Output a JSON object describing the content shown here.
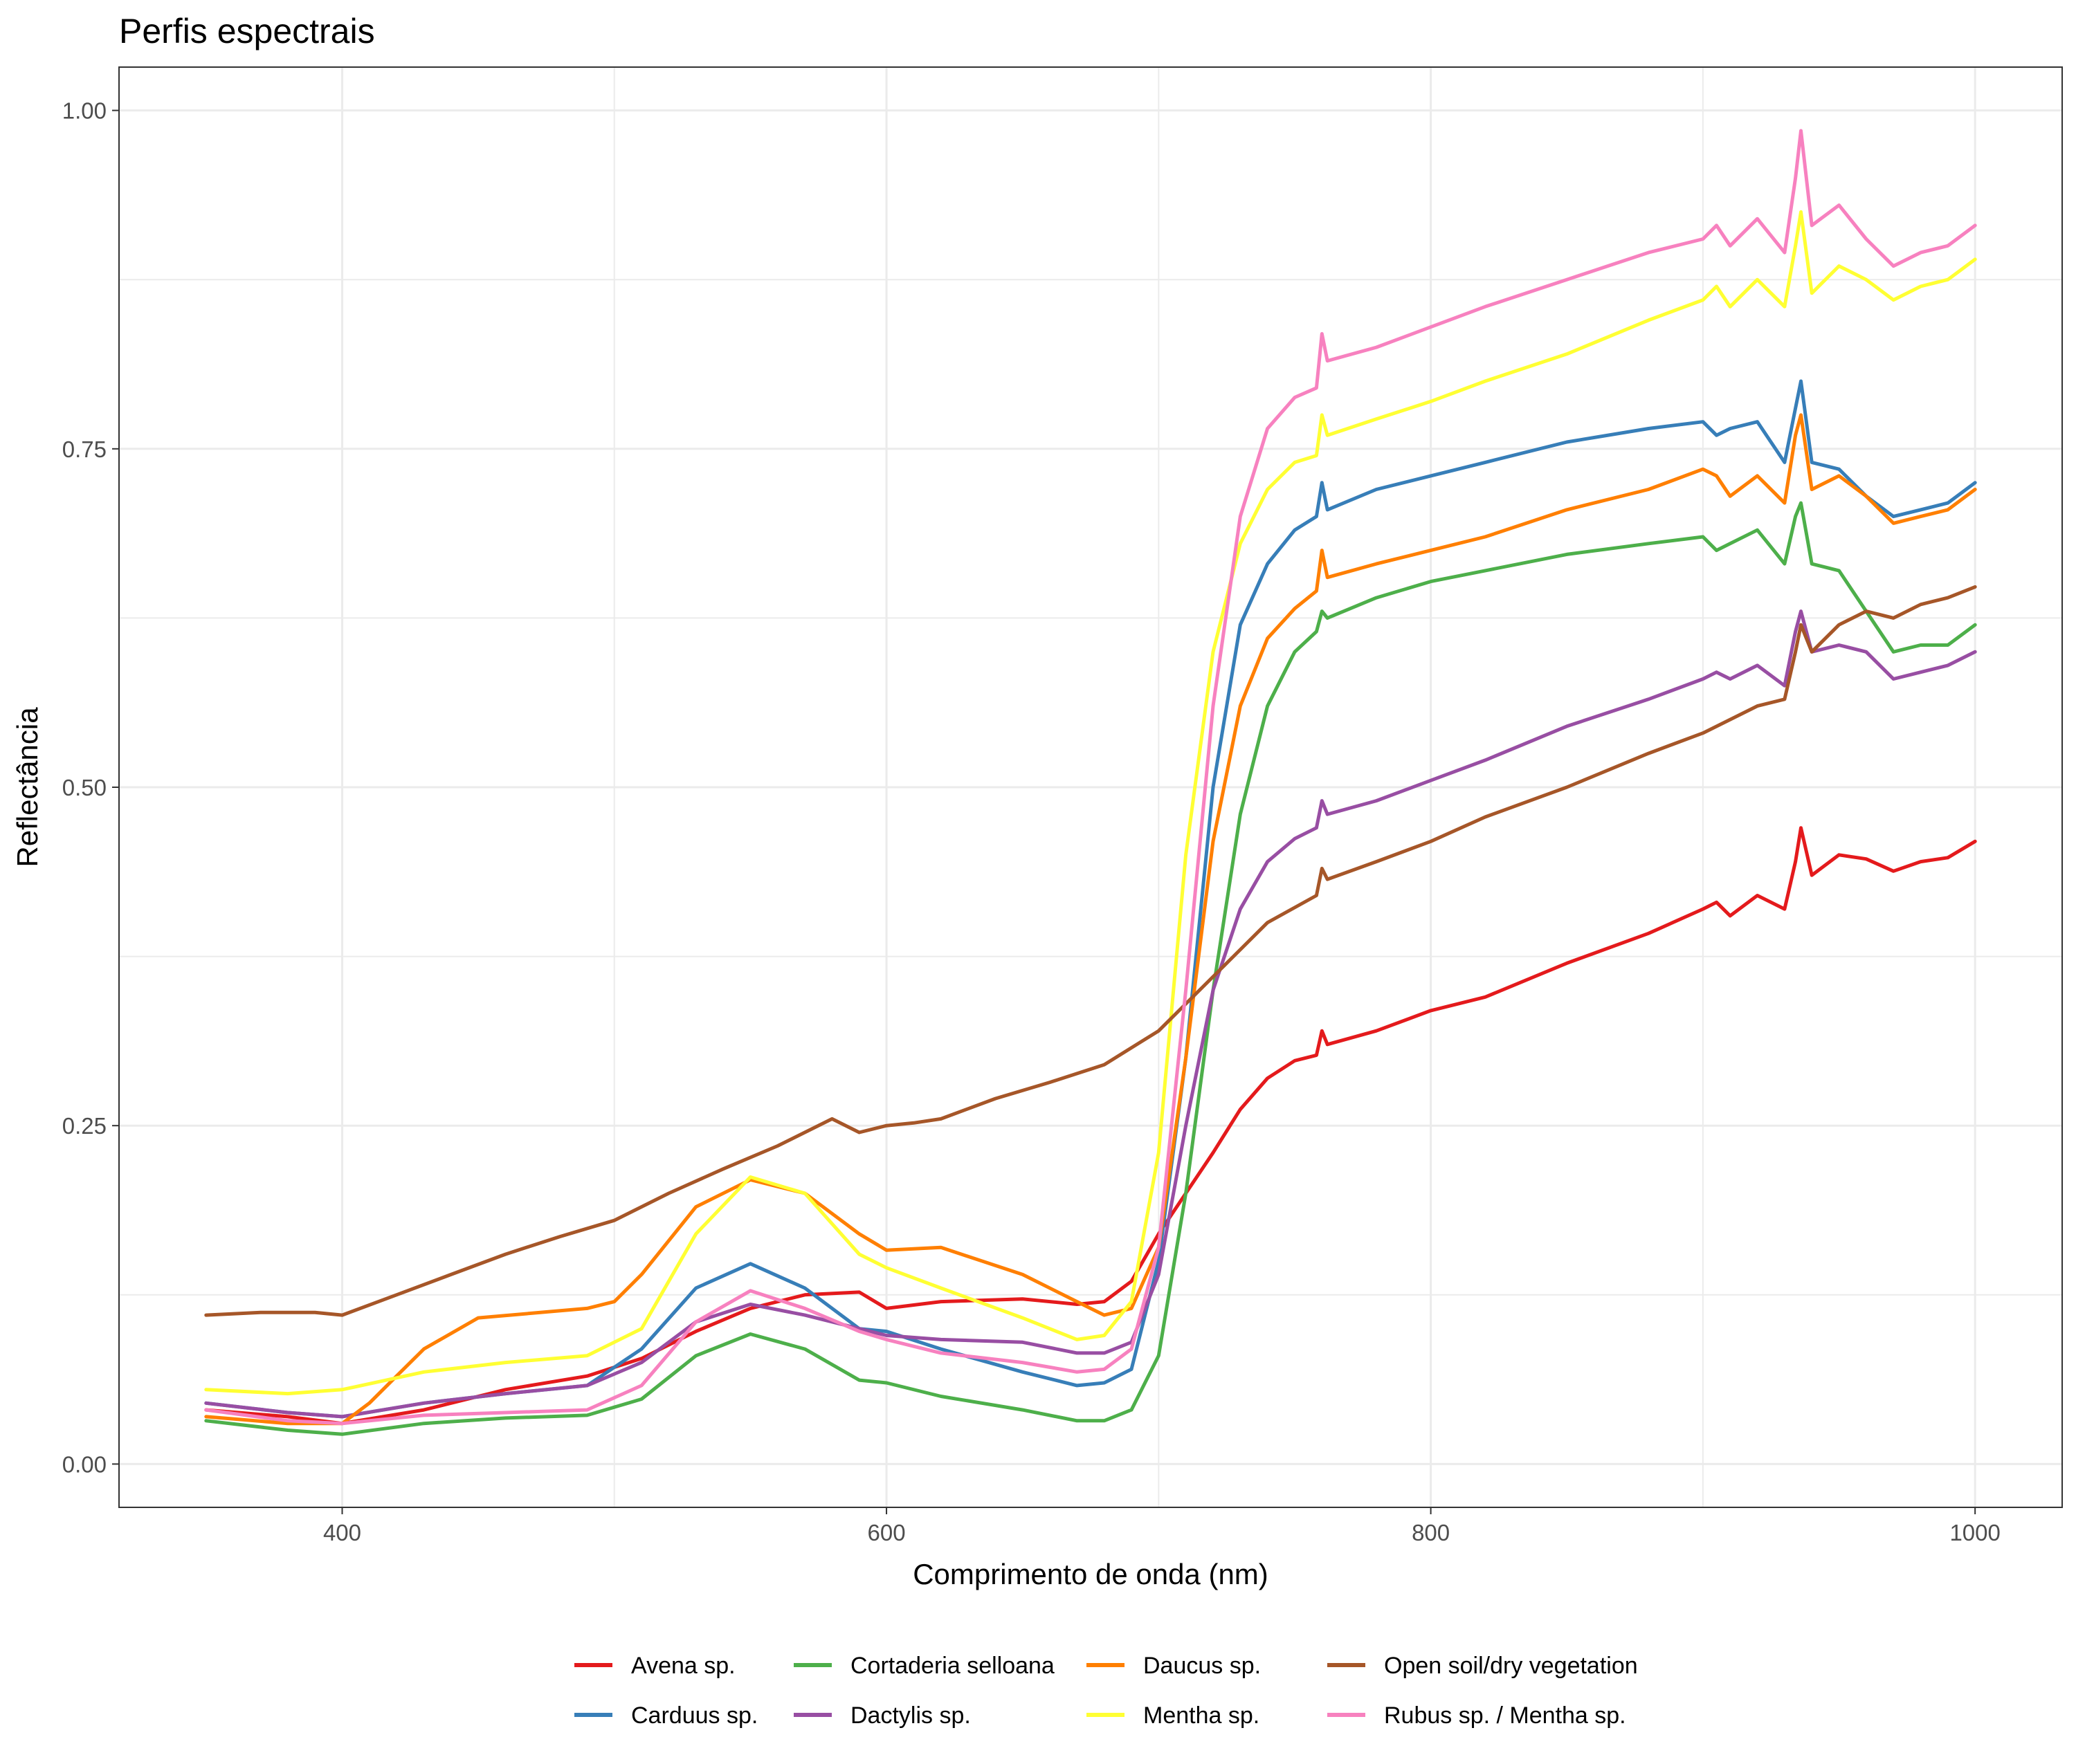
{
  "chart_data": {
    "type": "line",
    "title": "Perfis espectrais",
    "xlabel": "Comprimento de onda (nm)",
    "ylabel": "Reflectância",
    "xlim": [
      318,
      1032
    ],
    "ylim": [
      -0.032,
      1.032
    ],
    "x_ticks": [
      400,
      600,
      800,
      1000
    ],
    "x_tick_labels": [
      "400",
      "600",
      "800",
      "1000"
    ],
    "y_ticks": [
      0,
      0.25,
      0.5,
      0.75,
      1.0
    ],
    "y_tick_labels": [
      "0.00",
      "0.25",
      "0.50",
      "0.75",
      "1.00"
    ],
    "y_minor_ticks": [
      0.125,
      0.375,
      0.625,
      0.875
    ],
    "x_minor_ticks": [
      500,
      700,
      900
    ],
    "grid": true,
    "legend_position": "bottom",
    "series": [
      {
        "name": "Avena sp.",
        "color": "#e41a1c",
        "x": [
          350,
          380,
          400,
          430,
          460,
          490,
          510,
          530,
          550,
          570,
          590,
          600,
          620,
          650,
          670,
          680,
          690,
          700,
          710,
          720,
          730,
          740,
          750,
          758,
          760,
          762,
          780,
          800,
          820,
          850,
          880,
          900,
          905,
          910,
          920,
          930,
          934,
          936,
          940,
          950,
          960,
          970,
          980,
          990,
          1000
        ],
        "y": [
          0.04,
          0.035,
          0.03,
          0.04,
          0.055,
          0.065,
          0.078,
          0.098,
          0.115,
          0.125,
          0.127,
          0.115,
          0.12,
          0.122,
          0.118,
          0.12,
          0.135,
          0.17,
          0.2,
          0.23,
          0.262,
          0.285,
          0.298,
          0.302,
          0.32,
          0.31,
          0.32,
          0.335,
          0.345,
          0.37,
          0.392,
          0.41,
          0.415,
          0.405,
          0.42,
          0.41,
          0.445,
          0.47,
          0.435,
          0.45,
          0.447,
          0.438,
          0.445,
          0.448,
          0.46
        ]
      },
      {
        "name": "Carduus sp.",
        "color": "#377eb8",
        "x": [
          350,
          380,
          400,
          430,
          460,
          490,
          510,
          530,
          550,
          570,
          590,
          600,
          620,
          650,
          670,
          680,
          690,
          700,
          710,
          720,
          730,
          740,
          750,
          758,
          760,
          762,
          780,
          800,
          820,
          850,
          880,
          900,
          905,
          910,
          920,
          930,
          934,
          936,
          940,
          950,
          960,
          970,
          980,
          990,
          1000
        ],
        "y": [
          0.045,
          0.038,
          0.035,
          0.045,
          0.052,
          0.058,
          0.085,
          0.13,
          0.148,
          0.13,
          0.1,
          0.098,
          0.085,
          0.068,
          0.058,
          0.06,
          0.07,
          0.15,
          0.3,
          0.5,
          0.62,
          0.665,
          0.69,
          0.7,
          0.725,
          0.705,
          0.72,
          0.73,
          0.74,
          0.755,
          0.765,
          0.77,
          0.76,
          0.765,
          0.77,
          0.74,
          0.78,
          0.8,
          0.74,
          0.735,
          0.715,
          0.7,
          0.705,
          0.71,
          0.725
        ]
      },
      {
        "name": "Cortaderia selloana",
        "color": "#4daf4a",
        "x": [
          350,
          380,
          400,
          430,
          460,
          490,
          510,
          530,
          550,
          570,
          590,
          600,
          620,
          650,
          670,
          680,
          690,
          700,
          710,
          720,
          730,
          740,
          750,
          758,
          760,
          762,
          780,
          800,
          820,
          850,
          880,
          900,
          905,
          910,
          920,
          930,
          934,
          936,
          940,
          950,
          960,
          970,
          980,
          990,
          1000
        ],
        "y": [
          0.032,
          0.025,
          0.022,
          0.03,
          0.034,
          0.036,
          0.048,
          0.08,
          0.096,
          0.085,
          0.062,
          0.06,
          0.05,
          0.04,
          0.032,
          0.032,
          0.04,
          0.08,
          0.2,
          0.35,
          0.48,
          0.56,
          0.6,
          0.615,
          0.63,
          0.625,
          0.64,
          0.652,
          0.66,
          0.672,
          0.68,
          0.685,
          0.675,
          0.68,
          0.69,
          0.665,
          0.7,
          0.71,
          0.665,
          0.66,
          0.63,
          0.6,
          0.605,
          0.605,
          0.62
        ]
      },
      {
        "name": "Dactylis sp.",
        "color": "#984ea3",
        "x": [
          350,
          380,
          400,
          430,
          460,
          490,
          510,
          530,
          550,
          570,
          590,
          600,
          620,
          650,
          670,
          680,
          690,
          700,
          710,
          720,
          730,
          740,
          750,
          758,
          760,
          762,
          780,
          800,
          820,
          850,
          880,
          900,
          905,
          910,
          920,
          930,
          934,
          936,
          940,
          950,
          960,
          970,
          980,
          990,
          1000
        ],
        "y": [
          0.045,
          0.038,
          0.035,
          0.045,
          0.052,
          0.058,
          0.075,
          0.105,
          0.118,
          0.11,
          0.1,
          0.095,
          0.092,
          0.09,
          0.082,
          0.082,
          0.09,
          0.14,
          0.25,
          0.35,
          0.41,
          0.445,
          0.462,
          0.47,
          0.49,
          0.48,
          0.49,
          0.505,
          0.52,
          0.545,
          0.565,
          0.58,
          0.585,
          0.58,
          0.59,
          0.575,
          0.615,
          0.63,
          0.6,
          0.605,
          0.6,
          0.58,
          0.585,
          0.59,
          0.6
        ]
      },
      {
        "name": "Daucus sp.",
        "color": "#ff7f00",
        "x": [
          350,
          380,
          400,
          410,
          420,
          430,
          450,
          490,
          500,
          510,
          530,
          550,
          570,
          590,
          600,
          620,
          650,
          670,
          680,
          690,
          700,
          710,
          720,
          730,
          740,
          750,
          758,
          760,
          762,
          780,
          800,
          820,
          850,
          880,
          900,
          905,
          910,
          920,
          930,
          934,
          936,
          940,
          950,
          960,
          970,
          980,
          990,
          1000
        ],
        "y": [
          0.035,
          0.03,
          0.03,
          0.045,
          0.065,
          0.085,
          0.108,
          0.115,
          0.12,
          0.14,
          0.19,
          0.21,
          0.2,
          0.17,
          0.158,
          0.16,
          0.14,
          0.12,
          0.11,
          0.115,
          0.16,
          0.3,
          0.46,
          0.56,
          0.61,
          0.632,
          0.645,
          0.675,
          0.655,
          0.665,
          0.675,
          0.685,
          0.705,
          0.72,
          0.735,
          0.73,
          0.715,
          0.73,
          0.71,
          0.76,
          0.775,
          0.72,
          0.73,
          0.715,
          0.695,
          0.7,
          0.705,
          0.72
        ]
      },
      {
        "name": "Mentha sp.",
        "color": "#ffff33",
        "x": [
          350,
          380,
          400,
          430,
          460,
          490,
          510,
          530,
          550,
          570,
          590,
          600,
          620,
          650,
          670,
          680,
          690,
          700,
          710,
          720,
          730,
          740,
          750,
          758,
          760,
          762,
          780,
          800,
          820,
          850,
          880,
          900,
          905,
          910,
          920,
          930,
          934,
          936,
          940,
          950,
          960,
          970,
          980,
          990,
          1000
        ],
        "y": [
          0.055,
          0.052,
          0.055,
          0.068,
          0.075,
          0.08,
          0.1,
          0.17,
          0.212,
          0.2,
          0.155,
          0.145,
          0.13,
          0.108,
          0.092,
          0.095,
          0.12,
          0.23,
          0.45,
          0.6,
          0.68,
          0.72,
          0.74,
          0.745,
          0.775,
          0.76,
          0.772,
          0.785,
          0.8,
          0.82,
          0.845,
          0.86,
          0.87,
          0.855,
          0.875,
          0.855,
          0.9,
          0.925,
          0.865,
          0.885,
          0.875,
          0.86,
          0.87,
          0.875,
          0.89
        ]
      },
      {
        "name": "Open soil/dry vegetation",
        "color": "#a65628",
        "x": [
          350,
          370,
          390,
          400,
          420,
          440,
          460,
          480,
          500,
          520,
          540,
          560,
          580,
          590,
          600,
          610,
          620,
          640,
          660,
          680,
          700,
          720,
          740,
          758,
          760,
          762,
          780,
          800,
          820,
          850,
          880,
          900,
          920,
          930,
          934,
          936,
          940,
          950,
          960,
          970,
          980,
          990,
          1000
        ],
        "y": [
          0.11,
          0.112,
          0.112,
          0.11,
          0.125,
          0.14,
          0.155,
          0.168,
          0.18,
          0.2,
          0.218,
          0.235,
          0.255,
          0.245,
          0.25,
          0.252,
          0.255,
          0.27,
          0.282,
          0.295,
          0.32,
          0.36,
          0.4,
          0.42,
          0.44,
          0.432,
          0.445,
          0.46,
          0.478,
          0.5,
          0.525,
          0.54,
          0.56,
          0.565,
          0.6,
          0.62,
          0.6,
          0.62,
          0.63,
          0.625,
          0.635,
          0.64,
          0.648
        ]
      },
      {
        "name": "Rubus sp. / Mentha sp.",
        "color": "#f781bf",
        "x": [
          350,
          380,
          400,
          430,
          460,
          490,
          510,
          530,
          550,
          570,
          590,
          600,
          620,
          650,
          670,
          680,
          690,
          700,
          710,
          720,
          730,
          740,
          750,
          758,
          760,
          762,
          780,
          800,
          820,
          850,
          880,
          900,
          905,
          910,
          920,
          930,
          934,
          936,
          940,
          950,
          960,
          970,
          980,
          990,
          1000
        ],
        "y": [
          0.04,
          0.032,
          0.03,
          0.036,
          0.038,
          0.04,
          0.058,
          0.105,
          0.128,
          0.115,
          0.098,
          0.092,
          0.082,
          0.075,
          0.068,
          0.07,
          0.085,
          0.16,
          0.35,
          0.56,
          0.7,
          0.765,
          0.788,
          0.795,
          0.835,
          0.815,
          0.825,
          0.84,
          0.855,
          0.875,
          0.895,
          0.905,
          0.915,
          0.9,
          0.92,
          0.895,
          0.95,
          0.985,
          0.915,
          0.93,
          0.905,
          0.885,
          0.895,
          0.9,
          0.915
        ]
      }
    ]
  }
}
